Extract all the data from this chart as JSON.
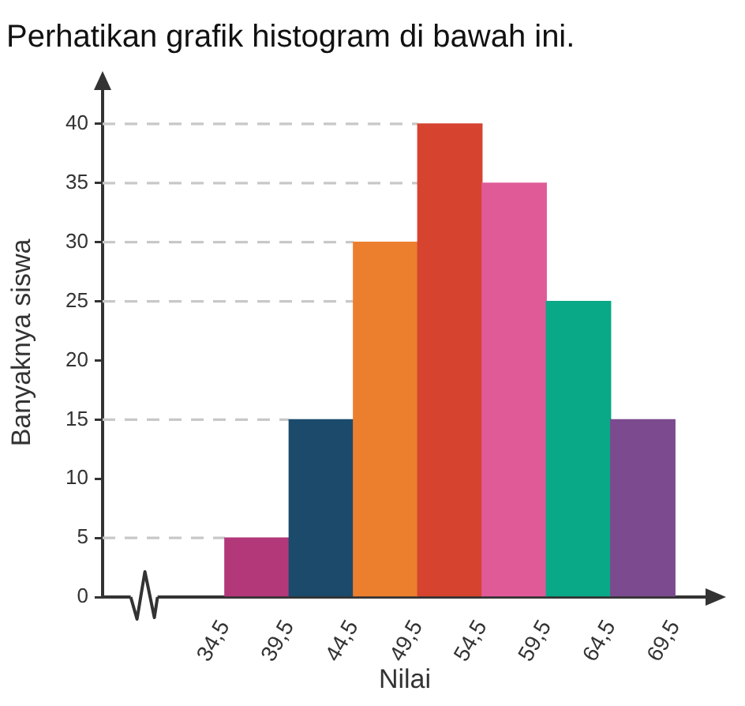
{
  "chart_data": {
    "type": "histogram",
    "title": "Perhatikan grafik histogram di bawah ini.",
    "xlabel": "Nilai",
    "ylabel": "Banyaknya siswa",
    "bins": [
      34.5,
      39.5,
      44.5,
      49.5,
      54.5,
      59.5,
      64.5,
      69.5
    ],
    "values": [
      5,
      15,
      30,
      40,
      35,
      25,
      15
    ],
    "colors": [
      "#b3387a",
      "#1b4a6b",
      "#ec7f2e",
      "#d6432f",
      "#e05a98",
      "#09a886",
      "#7b4a8f"
    ],
    "xlim": [
      25,
      72
    ],
    "ylim": [
      0,
      43
    ],
    "xticks": [
      {
        "value": 34.5,
        "label": "34,5"
      },
      {
        "value": 39.5,
        "label": "39,5"
      },
      {
        "value": 44.5,
        "label": "44,5"
      },
      {
        "value": 49.5,
        "label": "49,5"
      },
      {
        "value": 54.5,
        "label": "54,5"
      },
      {
        "value": 59.5,
        "label": "59,5"
      },
      {
        "value": 64.5,
        "label": "64,5"
      },
      {
        "value": 69.5,
        "label": "69,5"
      }
    ],
    "yticks": [
      0,
      5,
      10,
      15,
      20,
      25,
      30,
      35,
      40
    ],
    "ref_lines": [
      {
        "axis": "y",
        "value": 5,
        "color": "#c8c8c8",
        "line_style": "dashed"
      },
      {
        "axis": "y",
        "value": 15,
        "color": "#c8c8c8",
        "line_style": "dashed"
      },
      {
        "axis": "y",
        "value": 25,
        "color": "#c8c8c8",
        "line_style": "dashed"
      },
      {
        "axis": "y",
        "value": 30,
        "color": "#c8c8c8",
        "line_style": "dashed"
      },
      {
        "axis": "y",
        "value": 35,
        "color": "#c8c8c8",
        "line_style": "dashed"
      },
      {
        "axis": "y",
        "value": 40,
        "color": "#c8c8c8",
        "line_style": "dashed"
      }
    ]
  }
}
